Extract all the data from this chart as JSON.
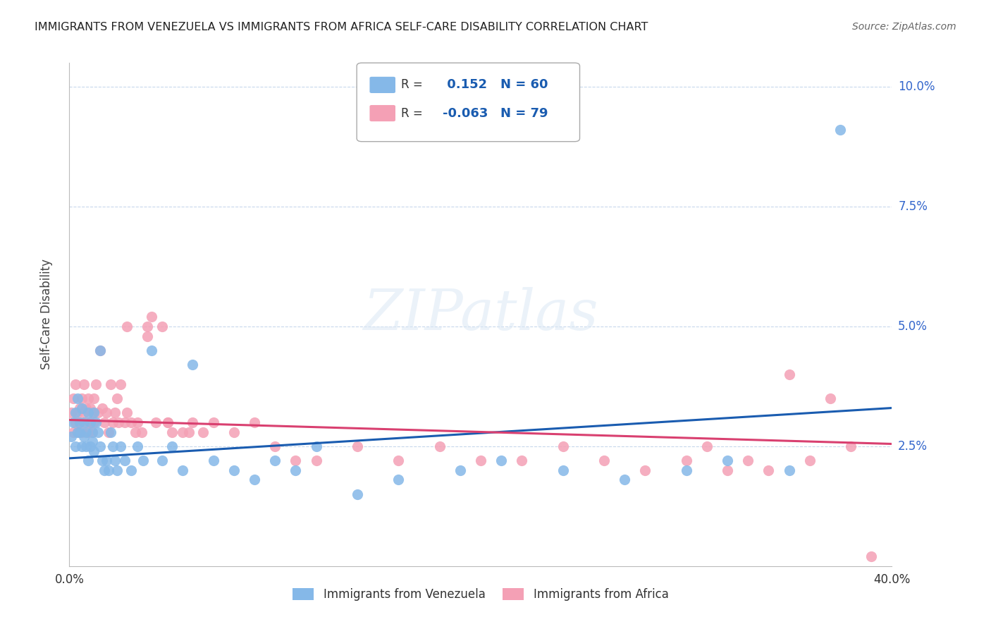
{
  "title": "IMMIGRANTS FROM VENEZUELA VS IMMIGRANTS FROM AFRICA SELF-CARE DISABILITY CORRELATION CHART",
  "source": "Source: ZipAtlas.com",
  "ylabel": "Self-Care Disability",
  "xlim": [
    0.0,
    0.4
  ],
  "ylim": [
    0.0,
    0.105
  ],
  "xticks": [
    0.0,
    0.05,
    0.1,
    0.15,
    0.2,
    0.25,
    0.3,
    0.35,
    0.4
  ],
  "yticks": [
    0.0,
    0.025,
    0.05,
    0.075,
    0.1
  ],
  "ytick_labels": [
    "",
    "2.5%",
    "5.0%",
    "7.5%",
    "10.0%"
  ],
  "color_venezuela": "#85b8e8",
  "color_africa": "#f4a0b5",
  "line_color_venezuela": "#1a5cb0",
  "line_color_africa": "#d94070",
  "R_venezuela": 0.152,
  "N_venezuela": 60,
  "R_africa": -0.063,
  "N_africa": 79,
  "background_color": "#ffffff",
  "grid_color": "#c8d8ec",
  "venezuela_x": [
    0.001,
    0.002,
    0.003,
    0.003,
    0.004,
    0.004,
    0.005,
    0.005,
    0.006,
    0.006,
    0.007,
    0.007,
    0.008,
    0.008,
    0.009,
    0.009,
    0.01,
    0.01,
    0.011,
    0.011,
    0.012,
    0.012,
    0.013,
    0.014,
    0.015,
    0.015,
    0.016,
    0.017,
    0.018,
    0.019,
    0.02,
    0.021,
    0.022,
    0.023,
    0.025,
    0.027,
    0.03,
    0.033,
    0.036,
    0.04,
    0.045,
    0.05,
    0.055,
    0.06,
    0.07,
    0.08,
    0.09,
    0.1,
    0.11,
    0.12,
    0.14,
    0.16,
    0.19,
    0.21,
    0.24,
    0.27,
    0.3,
    0.32,
    0.35,
    0.375
  ],
  "venezuela_y": [
    0.027,
    0.03,
    0.025,
    0.032,
    0.028,
    0.035,
    0.03,
    0.028,
    0.033,
    0.025,
    0.03,
    0.027,
    0.028,
    0.025,
    0.032,
    0.022,
    0.03,
    0.025,
    0.028,
    0.026,
    0.032,
    0.024,
    0.03,
    0.028,
    0.045,
    0.025,
    0.022,
    0.02,
    0.022,
    0.02,
    0.028,
    0.025,
    0.022,
    0.02,
    0.025,
    0.022,
    0.02,
    0.025,
    0.022,
    0.045,
    0.022,
    0.025,
    0.02,
    0.042,
    0.022,
    0.02,
    0.018,
    0.022,
    0.02,
    0.025,
    0.015,
    0.018,
    0.02,
    0.022,
    0.02,
    0.018,
    0.02,
    0.022,
    0.02,
    0.091
  ],
  "africa_x": [
    0.001,
    0.002,
    0.002,
    0.003,
    0.003,
    0.004,
    0.004,
    0.005,
    0.005,
    0.006,
    0.006,
    0.007,
    0.007,
    0.008,
    0.008,
    0.009,
    0.009,
    0.01,
    0.01,
    0.011,
    0.011,
    0.012,
    0.012,
    0.013,
    0.014,
    0.015,
    0.016,
    0.017,
    0.018,
    0.019,
    0.02,
    0.021,
    0.022,
    0.023,
    0.024,
    0.025,
    0.027,
    0.028,
    0.03,
    0.032,
    0.033,
    0.035,
    0.038,
    0.04,
    0.042,
    0.045,
    0.048,
    0.05,
    0.055,
    0.06,
    0.065,
    0.07,
    0.08,
    0.09,
    0.1,
    0.11,
    0.12,
    0.14,
    0.16,
    0.18,
    0.2,
    0.22,
    0.24,
    0.26,
    0.28,
    0.3,
    0.31,
    0.32,
    0.33,
    0.34,
    0.35,
    0.36,
    0.37,
    0.38,
    0.39,
    0.028,
    0.038,
    0.048,
    0.058
  ],
  "africa_y": [
    0.032,
    0.028,
    0.035,
    0.03,
    0.038,
    0.032,
    0.028,
    0.033,
    0.03,
    0.035,
    0.028,
    0.032,
    0.038,
    0.03,
    0.033,
    0.028,
    0.035,
    0.03,
    0.033,
    0.028,
    0.032,
    0.035,
    0.03,
    0.038,
    0.032,
    0.045,
    0.033,
    0.03,
    0.032,
    0.028,
    0.038,
    0.03,
    0.032,
    0.035,
    0.03,
    0.038,
    0.03,
    0.032,
    0.03,
    0.028,
    0.03,
    0.028,
    0.05,
    0.052,
    0.03,
    0.05,
    0.03,
    0.028,
    0.028,
    0.03,
    0.028,
    0.03,
    0.028,
    0.03,
    0.025,
    0.022,
    0.022,
    0.025,
    0.022,
    0.025,
    0.022,
    0.022,
    0.025,
    0.022,
    0.02,
    0.022,
    0.025,
    0.02,
    0.022,
    0.02,
    0.04,
    0.022,
    0.035,
    0.025,
    0.002,
    0.05,
    0.048,
    0.03,
    0.028
  ]
}
